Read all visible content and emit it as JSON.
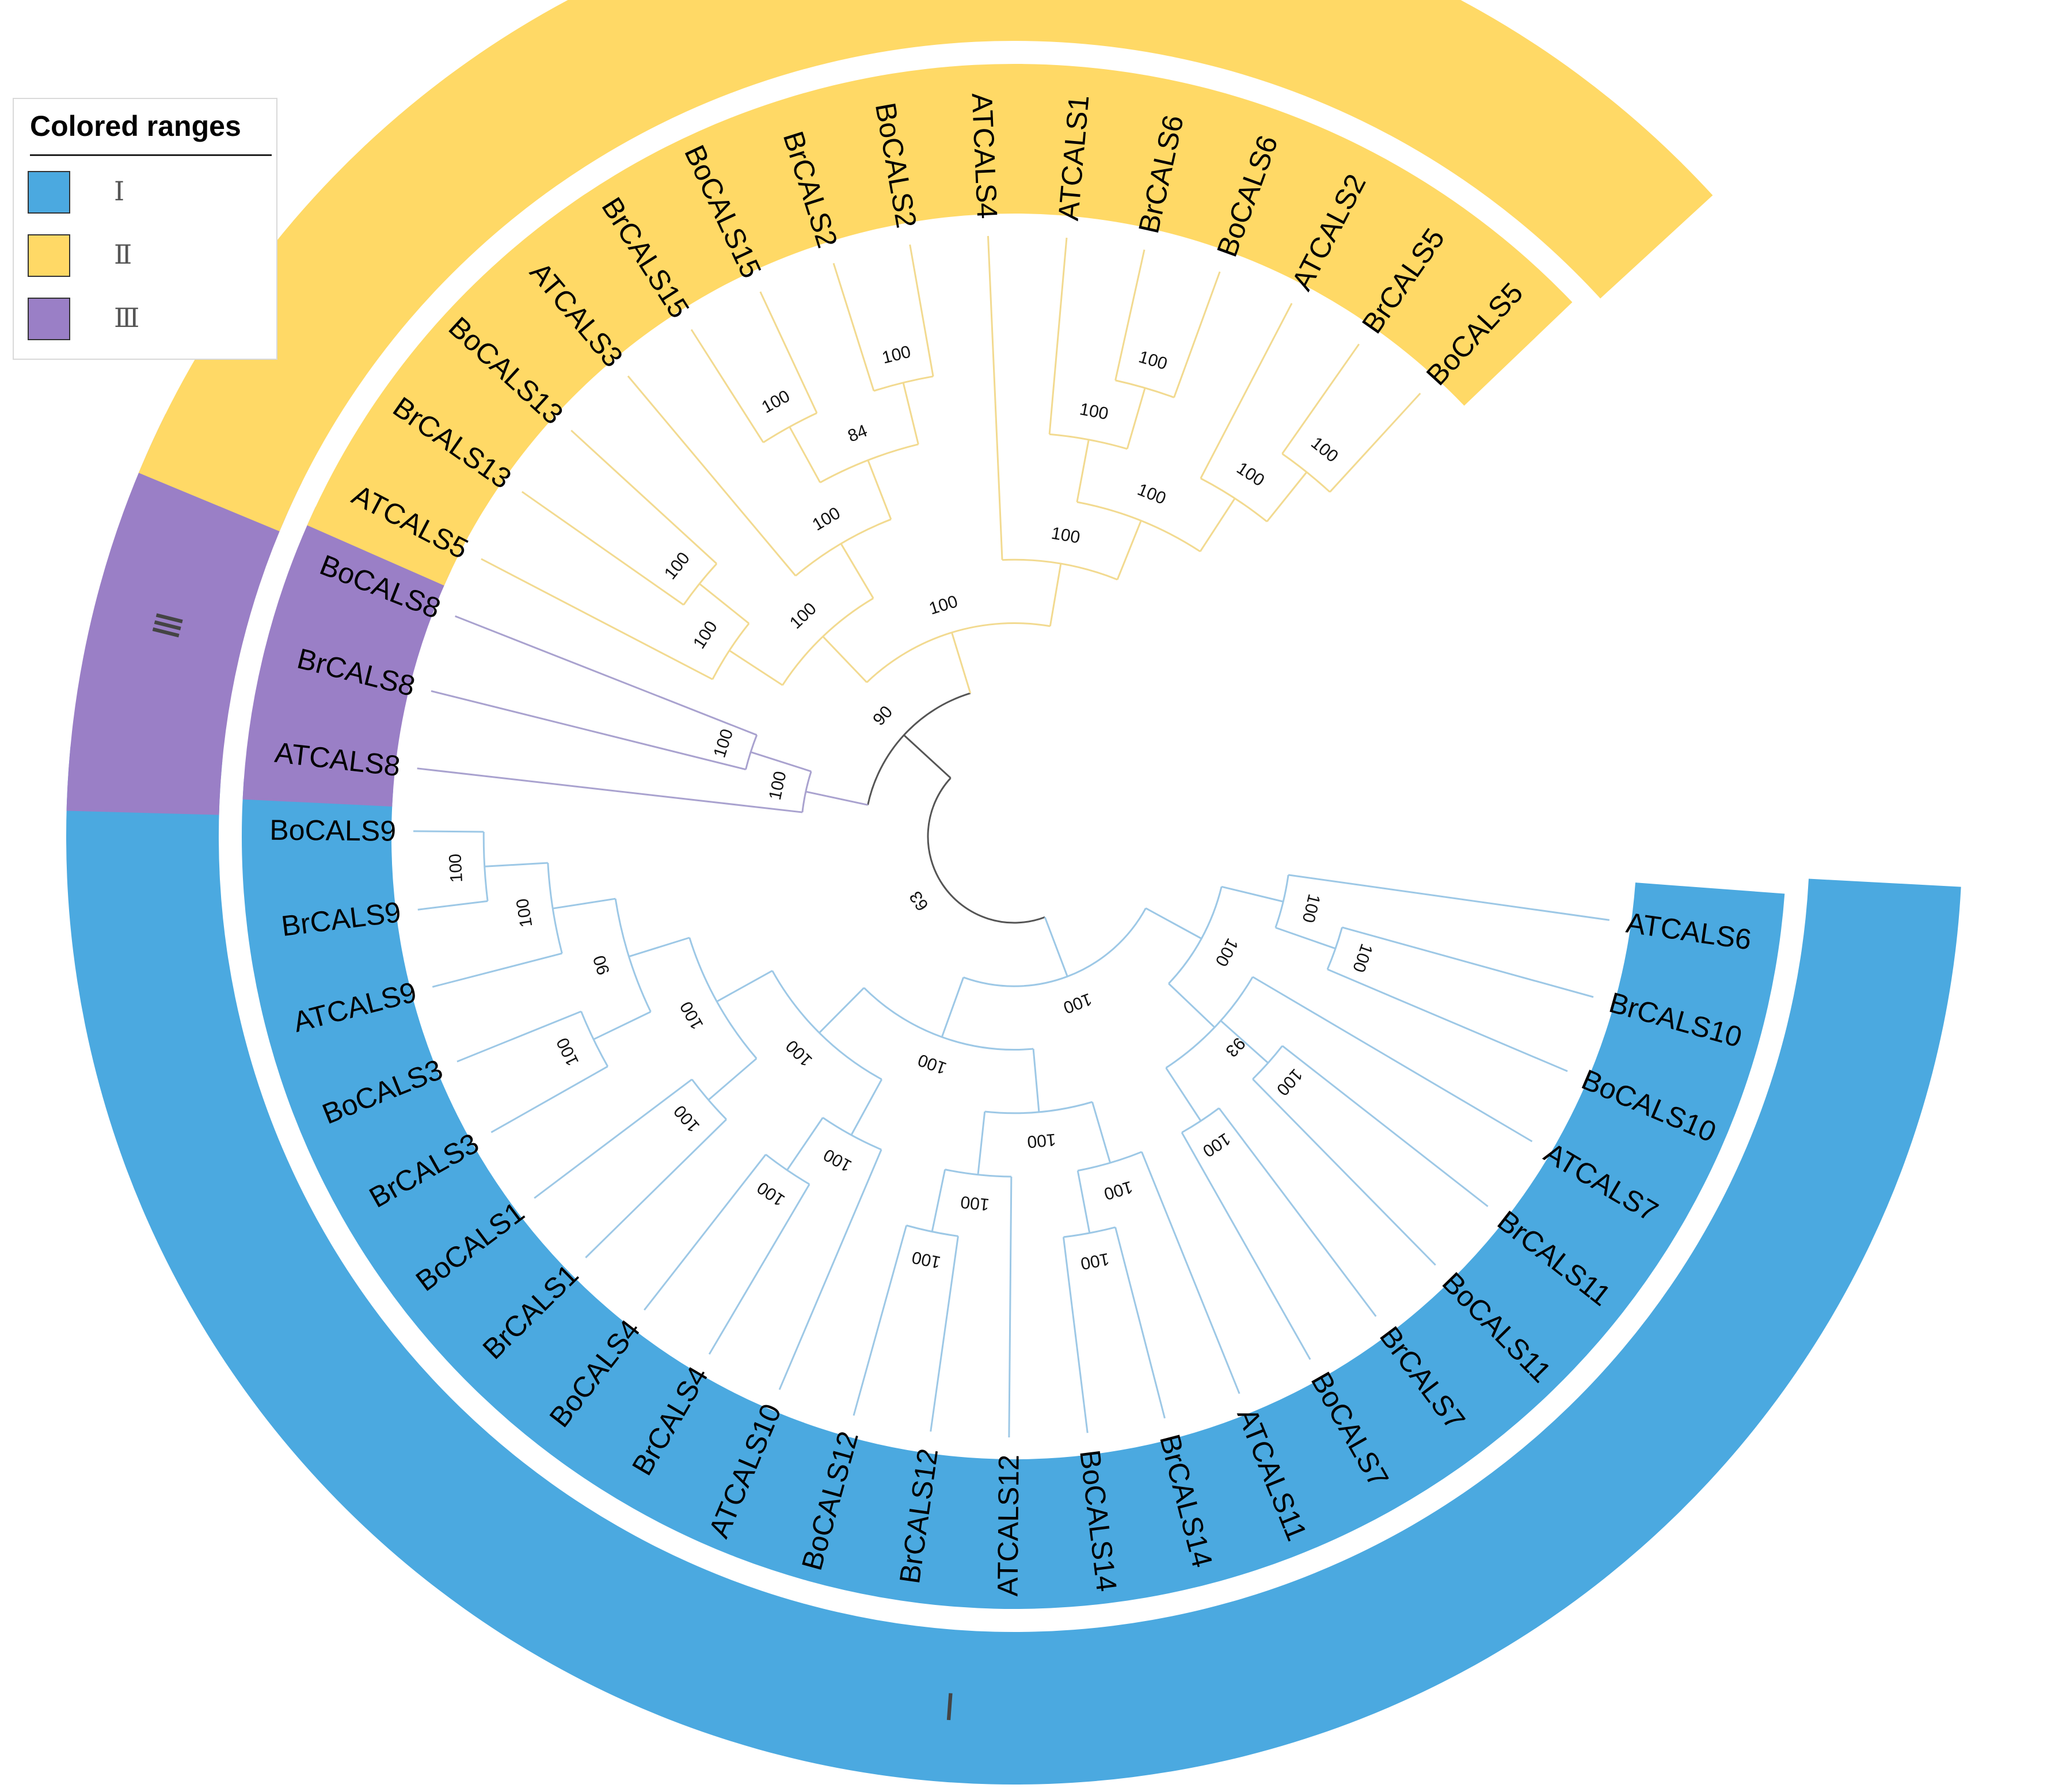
{
  "legend": {
    "title": "Colored ranges",
    "items": [
      {
        "label": "Ⅰ",
        "color": "#4BA9E0"
      },
      {
        "label": "Ⅱ",
        "color": "#FFD966"
      },
      {
        "label": "Ⅲ",
        "color": "#9A7FC6"
      }
    ]
  },
  "clades": [
    {
      "name": "Ⅰ",
      "color": "#4BA9E0",
      "branch_color": "#9DC8E6",
      "leaves": [
        "ATCALS6",
        "BrCALS10",
        "BoCALS10",
        "ATCALS7",
        "BrCALS11",
        "BoCALS11",
        "BrCALS7",
        "BoCALS7",
        "ATCALS11",
        "BrCALS14",
        "BoCALS14",
        "ATCALS12",
        "BrCALS12",
        "BoCALS12",
        "ATCALS10",
        "BrCALS4",
        "BoCALS4",
        "BrCALS1",
        "BoCALS1",
        "BrCALS3",
        "BoCALS3",
        "ATCALS9",
        "BrCALS9",
        "BoCALS9"
      ]
    },
    {
      "name": "Ⅲ",
      "color": "#9A7FC6",
      "branch_color": "#A9A2CF",
      "leaves": [
        "ATCALS8",
        "BrCALS8",
        "BoCALS8"
      ]
    },
    {
      "name": "Ⅱ",
      "color": "#FFD966",
      "branch_color": "#F2DA90",
      "leaves": [
        "ATCALS5",
        "BrCALS13",
        "BoCALS13",
        "ATCALS3",
        "BrCALS15",
        "BoCALS15",
        "BrCALS2",
        "BoCALS2",
        "ATCALS4",
        "ATCALS1",
        "BrCALS6",
        "BoCALS6",
        "ATCALS2",
        "BrCALS5",
        "BoCALS5"
      ]
    }
  ],
  "tree": {
    "clade": "root",
    "support": "63",
    "children": [
      {
        "clade": "Ⅰ",
        "support": "100",
        "children": [
          {
            "support": "100",
            "children": [
              {
                "support": "100",
                "children": [
                  {
                    "leaf": "ATCALS6"
                  },
                  {
                    "support": "100",
                    "children": [
                      {
                        "leaf": "BrCALS10"
                      },
                      {
                        "leaf": "BoCALS10"
                      }
                    ]
                  }
                ]
              },
              {
                "support": "93",
                "children": [
                  {
                    "leaf": "ATCALS7"
                  },
                  {
                    "support": "100",
                    "children": [
                      {
                        "leaf": "BrCALS11"
                      },
                      {
                        "leaf": "BoCALS11"
                      }
                    ]
                  },
                  {
                    "support": "100",
                    "children": [
                      {
                        "leaf": "BrCALS7"
                      },
                      {
                        "leaf": "BoCALS7"
                      }
                    ]
                  }
                ]
              }
            ]
          },
          {
            "support": "100",
            "children": [
              {
                "support": "100",
                "children": [
                  {
                    "support": "100",
                    "children": [
                      {
                        "leaf": "ATCALS11"
                      },
                      {
                        "support": "100",
                        "children": [
                          {
                            "leaf": "BrCALS14"
                          },
                          {
                            "leaf": "BoCALS14"
                          }
                        ]
                      }
                    ]
                  },
                  {
                    "support": "100",
                    "children": [
                      {
                        "leaf": "ATCALS12"
                      },
                      {
                        "support": "100",
                        "children": [
                          {
                            "leaf": "BrCALS12"
                          },
                          {
                            "leaf": "BoCALS12"
                          }
                        ]
                      }
                    ]
                  }
                ]
              },
              {
                "support": "100",
                "children": [
                  {
                    "support": "100",
                    "children": [
                      {
                        "leaf": "ATCALS10"
                      },
                      {
                        "support": "100",
                        "children": [
                          {
                            "leaf": "BrCALS4"
                          },
                          {
                            "leaf": "BoCALS4"
                          }
                        ]
                      }
                    ]
                  },
                  {
                    "support": "100",
                    "children": [
                      {
                        "support": "100",
                        "children": [
                          {
                            "leaf": "BrCALS1"
                          },
                          {
                            "leaf": "BoCALS1"
                          }
                        ]
                      },
                      {
                        "support": "90",
                        "children": [
                          {
                            "support": "100",
                            "children": [
                              {
                                "leaf": "BrCALS3"
                              },
                              {
                                "leaf": "BoCALS3"
                              }
                            ]
                          },
                          {
                            "support": "100",
                            "children": [
                              {
                                "leaf": "ATCALS9"
                              },
                              {
                                "support": "100",
                                "children": [
                                  {
                                    "leaf": "BrCALS9"
                                  },
                                  {
                                    "leaf": "BoCALS9"
                                  }
                                ]
                              }
                            ]
                          }
                        ]
                      }
                    ]
                  }
                ]
              }
            ]
          }
        ]
      },
      {
        "support": "90",
        "children": [
          {
            "clade": "Ⅲ",
            "support": "100",
            "children": [
              {
                "leaf": "ATCALS8"
              },
              {
                "support": "100",
                "children": [
                  {
                    "leaf": "BrCALS8"
                  },
                  {
                    "leaf": "BoCALS8"
                  }
                ]
              }
            ]
          },
          {
            "clade": "Ⅱ",
            "support": "100",
            "children": [
              {
                "support": "100",
                "children": [
                  {
                    "support": "100",
                    "children": [
                      {
                        "leaf": "ATCALS5"
                      },
                      {
                        "support": "100",
                        "children": [
                          {
                            "leaf": "BrCALS13"
                          },
                          {
                            "leaf": "BoCALS13"
                          }
                        ]
                      }
                    ]
                  },
                  {
                    "support": "100",
                    "children": [
                      {
                        "leaf": "ATCALS3"
                      },
                      {
                        "support": "84",
                        "children": [
                          {
                            "support": "100",
                            "children": [
                              {
                                "leaf": "BrCALS15"
                              },
                              {
                                "leaf": "BoCALS15"
                              }
                            ]
                          },
                          {
                            "support": "100",
                            "children": [
                              {
                                "leaf": "BrCALS2"
                              },
                              {
                                "leaf": "BoCALS2"
                              }
                            ]
                          }
                        ]
                      }
                    ]
                  }
                ]
              },
              {
                "support": "100",
                "children": [
                  {
                    "leaf": "ATCALS4"
                  },
                  {
                    "support": "100",
                    "children": [
                      {
                        "support": "100",
                        "children": [
                          {
                            "leaf": "ATCALS1"
                          },
                          {
                            "support": "100",
                            "children": [
                              {
                                "leaf": "BrCALS6"
                              },
                              {
                                "leaf": "BoCALS6"
                              }
                            ]
                          }
                        ]
                      },
                      {
                        "support": "100",
                        "children": [
                          {
                            "leaf": "ATCALS2"
                          },
                          {
                            "support": "100",
                            "children": [
                              {
                                "leaf": "BrCALS5"
                              },
                              {
                                "leaf": "BoCALS5"
                              }
                            ]
                          }
                        ]
                      }
                    ]
                  }
                ]
              }
            ]
          }
        ]
      }
    ]
  }
}
